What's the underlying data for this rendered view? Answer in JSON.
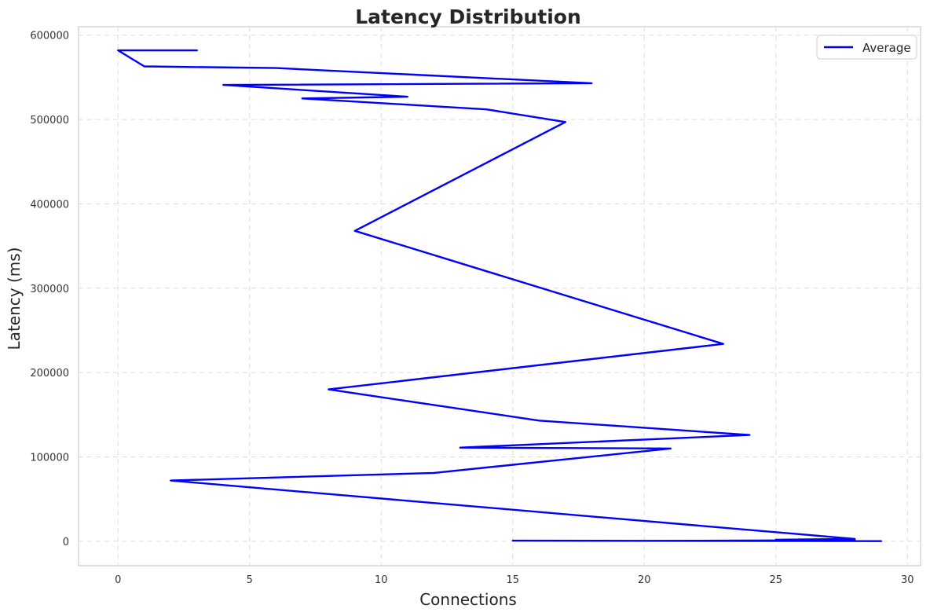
{
  "chart_data": {
    "type": "line",
    "title": "Latency Distribution",
    "xlabel": "Connections",
    "ylabel": "Latency (ms)",
    "xlim": [
      -1.5,
      30.5
    ],
    "ylim": [
      -29000,
      610000
    ],
    "xticks": [
      0,
      5,
      10,
      15,
      20,
      25,
      30
    ],
    "yticks": [
      0,
      100000,
      200000,
      300000,
      400000,
      500000,
      600000
    ],
    "grid": true,
    "legend_position": "top-right",
    "series": [
      {
        "name": "Average",
        "color": "#0000ff",
        "x": [
          15,
          29,
          20,
          28,
          25,
          28,
          2,
          12,
          21,
          13,
          24,
          16,
          8,
          23,
          9,
          17,
          14,
          7,
          11,
          4,
          18,
          6,
          1,
          0,
          3
        ],
        "y": [
          700,
          200,
          400,
          1300,
          1800,
          2800,
          72000,
          81000,
          110000,
          111000,
          126000,
          143000,
          180000,
          234000,
          368000,
          497000,
          512000,
          525000,
          527000,
          541000,
          543000,
          561000,
          563000,
          582000,
          582000
        ]
      }
    ]
  }
}
